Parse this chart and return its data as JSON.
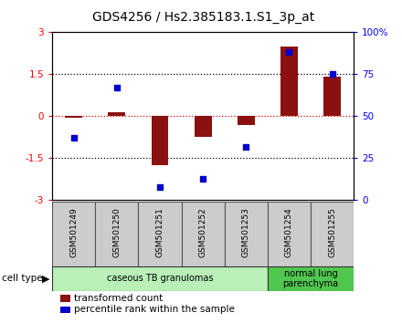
{
  "title": "GDS4256 / Hs2.385183.1.S1_3p_at",
  "samples": [
    "GSM501249",
    "GSM501250",
    "GSM501251",
    "GSM501252",
    "GSM501253",
    "GSM501254",
    "GSM501255"
  ],
  "transformed_count": [
    -0.05,
    0.15,
    -1.75,
    -0.75,
    -0.3,
    2.5,
    1.4
  ],
  "percentile_rank": [
    37,
    67,
    8,
    13,
    32,
    88,
    75
  ],
  "ylim_left": [
    -3,
    3
  ],
  "ylim_right": [
    0,
    100
  ],
  "yticks_left": [
    -3,
    -1.5,
    0,
    1.5,
    3
  ],
  "yticks_right": [
    0,
    25,
    50,
    75,
    100
  ],
  "ytick_right_labels": [
    "0",
    "25",
    "50",
    "75",
    "100%"
  ],
  "hlines_black": [
    -1.5,
    1.5
  ],
  "hline_red": 0,
  "bar_color": "#8B1010",
  "scatter_color": "#0000CC",
  "cell_type_groups": [
    {
      "label": "caseous TB granulomas",
      "start": 0,
      "end": 4,
      "color": "#b8f0b8"
    },
    {
      "label": "normal lung\nparenchyma",
      "start": 5,
      "end": 6,
      "color": "#50c850"
    }
  ],
  "cell_type_label": "cell type",
  "legend_bar_label": "transformed count",
  "legend_scatter_label": "percentile rank within the sample",
  "sample_box_color": "#cccccc",
  "title_fontsize": 10,
  "tick_fontsize": 7.5,
  "bar_width": 0.4
}
